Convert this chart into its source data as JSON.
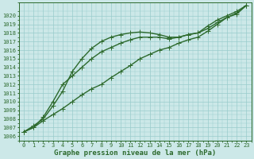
{
  "x": [
    0,
    1,
    2,
    3,
    4,
    5,
    6,
    7,
    8,
    9,
    10,
    11,
    12,
    13,
    14,
    15,
    16,
    17,
    18,
    19,
    20,
    21,
    22,
    23
  ],
  "series": [
    [
      1006.5,
      1007.2,
      1008.0,
      1009.5,
      1011.2,
      1013.5,
      1015.0,
      1016.2,
      1017.0,
      1017.5,
      1017.8,
      1018.0,
      1018.1,
      1018.0,
      1017.8,
      1017.5,
      1017.5,
      1017.8,
      1018.0,
      1018.5,
      1019.2,
      1019.8,
      1020.3,
      1021.2
    ],
    [
      1006.5,
      1007.0,
      1008.2,
      1010.0,
      1012.0,
      1013.0,
      1014.0,
      1015.0,
      1015.8,
      1016.3,
      1016.8,
      1017.2,
      1017.5,
      1017.5,
      1017.5,
      1017.3,
      1017.5,
      1017.8,
      1018.0,
      1018.8,
      1019.5,
      1020.0,
      1020.5,
      1021.2
    ],
    [
      1006.5,
      1007.0,
      1007.8,
      1008.5,
      1009.2,
      1010.0,
      1010.8,
      1011.5,
      1012.0,
      1012.8,
      1013.5,
      1014.2,
      1015.0,
      1015.5,
      1016.0,
      1016.3,
      1016.8,
      1017.2,
      1017.5,
      1018.2,
      1019.0,
      1019.8,
      1020.2,
      1021.2
    ]
  ],
  "line_colors": [
    "#2d6a2d",
    "#2d6a2d",
    "#2d6a2d"
  ],
  "marker": "+",
  "marker_sizes": [
    4,
    4,
    4
  ],
  "linewidths": [
    1.0,
    1.0,
    1.0
  ],
  "bg_color": "#cce8e8",
  "grid_color": "#99cccc",
  "axis_color": "#2d6a2d",
  "text_color": "#2d6a2d",
  "ylabel_ticks": [
    1006,
    1007,
    1008,
    1009,
    1010,
    1011,
    1012,
    1013,
    1014,
    1015,
    1016,
    1017,
    1018,
    1019,
    1020
  ],
  "ylim": [
    1005.5,
    1021.5
  ],
  "xlim": [
    -0.5,
    23.5
  ],
  "xlabel": "Graphe pression niveau de la mer (hPa)",
  "tick_fontsize": 5.0,
  "label_fontsize": 6.5
}
